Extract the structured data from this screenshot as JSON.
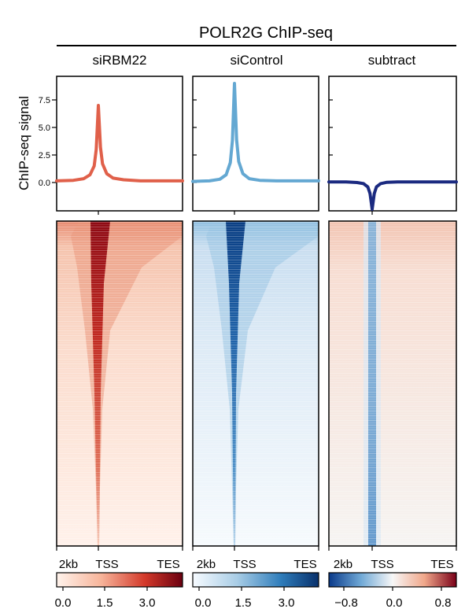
{
  "figure": {
    "title": "POLR2G ChIP-seq"
  },
  "ylabel": "ChIP-seq signal",
  "colors": {
    "sirbm22": "#e0604a",
    "sicontrol": "#64a8d2",
    "subtract": "#1b2a80"
  },
  "chart_data": [
    {
      "type": "line",
      "panel": "siRBM22",
      "title": "siRBM22",
      "x_ticks": [
        "2kb",
        "TSS",
        "TES"
      ],
      "yticks": [
        "7.5",
        "5.0",
        "2.5",
        "0.0"
      ],
      "ylim": [
        -2.5,
        9.0
      ],
      "series": [
        {
          "x": [
            "2kb upstream",
            "TSS",
            "TES"
          ],
          "values_profile": [
            [
              -1.0,
              0.15
            ],
            [
              -0.6,
              0.2
            ],
            [
              -0.35,
              0.35
            ],
            [
              -0.2,
              0.7
            ],
            [
              -0.1,
              1.5
            ],
            [
              -0.05,
              3.0
            ],
            [
              0,
              7.0
            ],
            [
              0.05,
              3.2
            ],
            [
              0.1,
              1.7
            ],
            [
              0.2,
              0.8
            ],
            [
              0.35,
              0.4
            ],
            [
              0.6,
              0.25
            ],
            [
              1.0,
              0.15
            ],
            [
              1.5,
              0.15
            ],
            [
              2.0,
              0.15
            ]
          ]
        }
      ],
      "heatmap": {
        "colorbar_ticks": [
          "0.0",
          "1.5",
          "3.0"
        ],
        "range": [
          0,
          3.5
        ],
        "cmap": "white-red"
      }
    },
    {
      "type": "line",
      "panel": "siControl",
      "title": "siControl",
      "x_ticks": [
        "2kb",
        "TSS",
        "TES"
      ],
      "ylim": [
        -2.5,
        9.0
      ],
      "series": [
        {
          "values_profile": [
            [
              -1.0,
              0.1
            ],
            [
              -0.6,
              0.15
            ],
            [
              -0.35,
              0.3
            ],
            [
              -0.2,
              0.7
            ],
            [
              -0.1,
              1.8
            ],
            [
              -0.05,
              3.8
            ],
            [
              0,
              9.0
            ],
            [
              0.05,
              3.9
            ],
            [
              0.1,
              1.9
            ],
            [
              0.2,
              0.8
            ],
            [
              0.35,
              0.35
            ],
            [
              0.6,
              0.2
            ],
            [
              1.0,
              0.15
            ],
            [
              1.5,
              0.15
            ],
            [
              2.0,
              0.15
            ]
          ]
        }
      ],
      "heatmap": {
        "colorbar_ticks": [
          "0.0",
          "1.5",
          "3.0"
        ],
        "range": [
          0,
          3.5
        ],
        "cmap": "white-blue"
      }
    },
    {
      "type": "line",
      "panel": "subtract",
      "title": "subtract",
      "x_ticks": [
        "2kb",
        "TSS",
        "TES"
      ],
      "ylim": [
        -2.5,
        9.0
      ],
      "series": [
        {
          "values_profile": [
            [
              -1.0,
              0.05
            ],
            [
              -0.6,
              0.05
            ],
            [
              -0.35,
              0.0
            ],
            [
              -0.2,
              -0.1
            ],
            [
              -0.1,
              -0.4
            ],
            [
              -0.05,
              -1.0
            ],
            [
              0,
              -2.5
            ],
            [
              0.05,
              -1.0
            ],
            [
              0.1,
              -0.4
            ],
            [
              0.2,
              -0.1
            ],
            [
              0.35,
              0.02
            ],
            [
              0.6,
              0.05
            ],
            [
              1.0,
              0.05
            ],
            [
              1.5,
              0.05
            ],
            [
              2.0,
              0.05
            ]
          ]
        }
      ],
      "heatmap": {
        "colorbar_ticks": [
          "−0.8",
          "0.0",
          "0.8"
        ],
        "range": [
          -0.8,
          0.8
        ],
        "cmap": "blue-white-red"
      }
    }
  ]
}
